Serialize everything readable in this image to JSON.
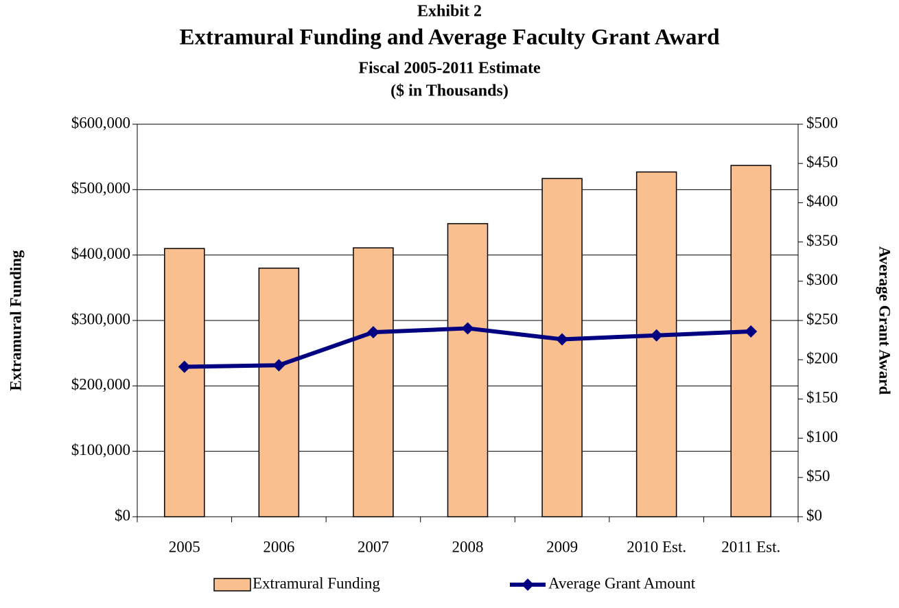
{
  "chart_data": {
    "type": "bar-line",
    "title": "Exhibit 2",
    "subtitle": "Extramural Funding and Average Faculty Grant Award",
    "subtitle2": "Fiscal 2005-2011 Estimate",
    "subtitle3": "($ in Thousands)",
    "ylabel": "Extramural Funding",
    "y2label": "Average Grant Award",
    "categories": [
      "2005",
      "2006",
      "2007",
      "2008",
      "2009",
      "2010 Est.",
      "2011 Est."
    ],
    "series": [
      {
        "name": "Extramural Funding",
        "type": "bar",
        "color": "#f9bf8f",
        "values": [
          410000,
          380000,
          411000,
          448000,
          517000,
          527000,
          537000
        ]
      },
      {
        "name": "Average Grant Amount",
        "type": "line",
        "axis": "y2",
        "color": "#000080",
        "values": [
          191,
          193,
          235,
          240,
          226,
          231,
          236
        ]
      }
    ],
    "ylim": [
      0,
      600000
    ],
    "yticks": [
      {
        "value": 0,
        "label": "$0"
      },
      {
        "value": 100000,
        "label": "$100,000"
      },
      {
        "value": 200000,
        "label": "$200,000"
      },
      {
        "value": 300000,
        "label": "$300,000"
      },
      {
        "value": 400000,
        "label": "$400,000"
      },
      {
        "value": 500000,
        "label": "$500,000"
      },
      {
        "value": 600000,
        "label": "$600,000"
      }
    ],
    "y2lim": [
      0,
      500
    ],
    "y2ticks": [
      {
        "value": 0,
        "label": "$0"
      },
      {
        "value": 50,
        "label": "$50"
      },
      {
        "value": 100,
        "label": "$100"
      },
      {
        "value": 150,
        "label": "$150"
      },
      {
        "value": 200,
        "label": "$200"
      },
      {
        "value": 250,
        "label": "$250"
      },
      {
        "value": 300,
        "label": "$300"
      },
      {
        "value": 350,
        "label": "$350"
      },
      {
        "value": 400,
        "label": "$400"
      },
      {
        "value": 450,
        "label": "$450"
      },
      {
        "value": 500,
        "label": "$500"
      }
    ],
    "grid": true,
    "legend": "bottom"
  }
}
